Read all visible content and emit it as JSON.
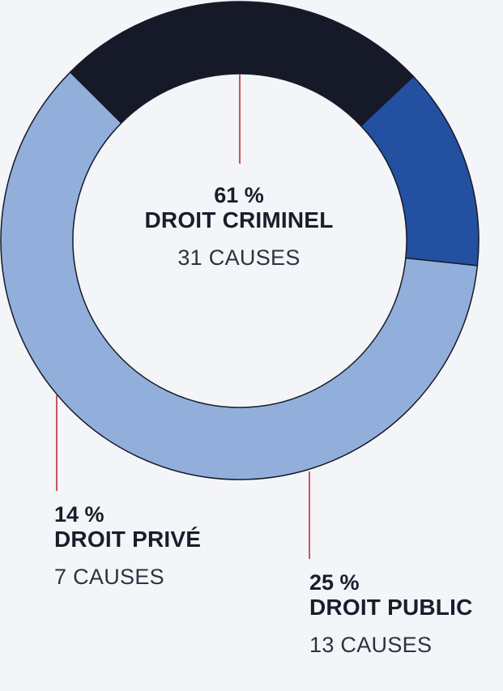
{
  "chart_data": {
    "type": "pie",
    "donut": true,
    "series": [
      {
        "name": "DROIT CRIMINEL",
        "percent_label": "61 %",
        "cases_label": "31 CAUSES",
        "value": 31,
        "color": "#92afdc"
      },
      {
        "name": "DROIT PUBLIC",
        "percent_label": "25 %",
        "cases_label": "13 CAUSES",
        "value": 13,
        "color": "#161a28"
      },
      {
        "name": "DROIT PRIVÉ",
        "percent_label": "14 %",
        "cases_label": "7 CAUSES",
        "value": 7,
        "color": "#2350a0"
      }
    ],
    "leader_color": "#b5222a"
  }
}
